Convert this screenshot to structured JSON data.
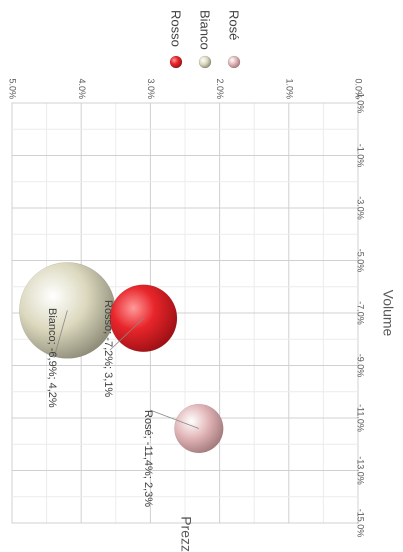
{
  "chart_data": {
    "type": "bubble",
    "orientation": "rotated-90-clockwise",
    "title": "",
    "xlabel": "Volume",
    "ylabel": "Prezzo",
    "xlim": [
      -15.0,
      1.0
    ],
    "ylim": [
      0.0,
      5.0
    ],
    "x_ticks": [
      "-15.0%",
      "-13.0%",
      "-11.0%",
      "-9.0%",
      "-7.0%",
      "-5.0%",
      "-3.0%",
      "-1.0%",
      "1.0%"
    ],
    "y_ticks": [
      "0.0%",
      "1.0%",
      "2.0%",
      "3.0%",
      "4.0%",
      "5.0%"
    ],
    "grid": true,
    "legend_position": "top-right",
    "series": [
      {
        "name": "Rosso",
        "x": -7.2,
        "y": 3.1,
        "size": 1.0,
        "color": "#e8262b",
        "label": "Rosso; -7,2%; 3,1%"
      },
      {
        "name": "Bianco",
        "x": -6.9,
        "y": 4.2,
        "size": 2.05,
        "color": "#dcd9bf",
        "label": "Bianco; -6,9%; 4,2%"
      },
      {
        "name": "Rosé",
        "x": -11.4,
        "y": 2.3,
        "size": 0.53,
        "color": "#e2b6b8",
        "label": "Rosé; -11,4%; 2,3%"
      }
    ]
  }
}
